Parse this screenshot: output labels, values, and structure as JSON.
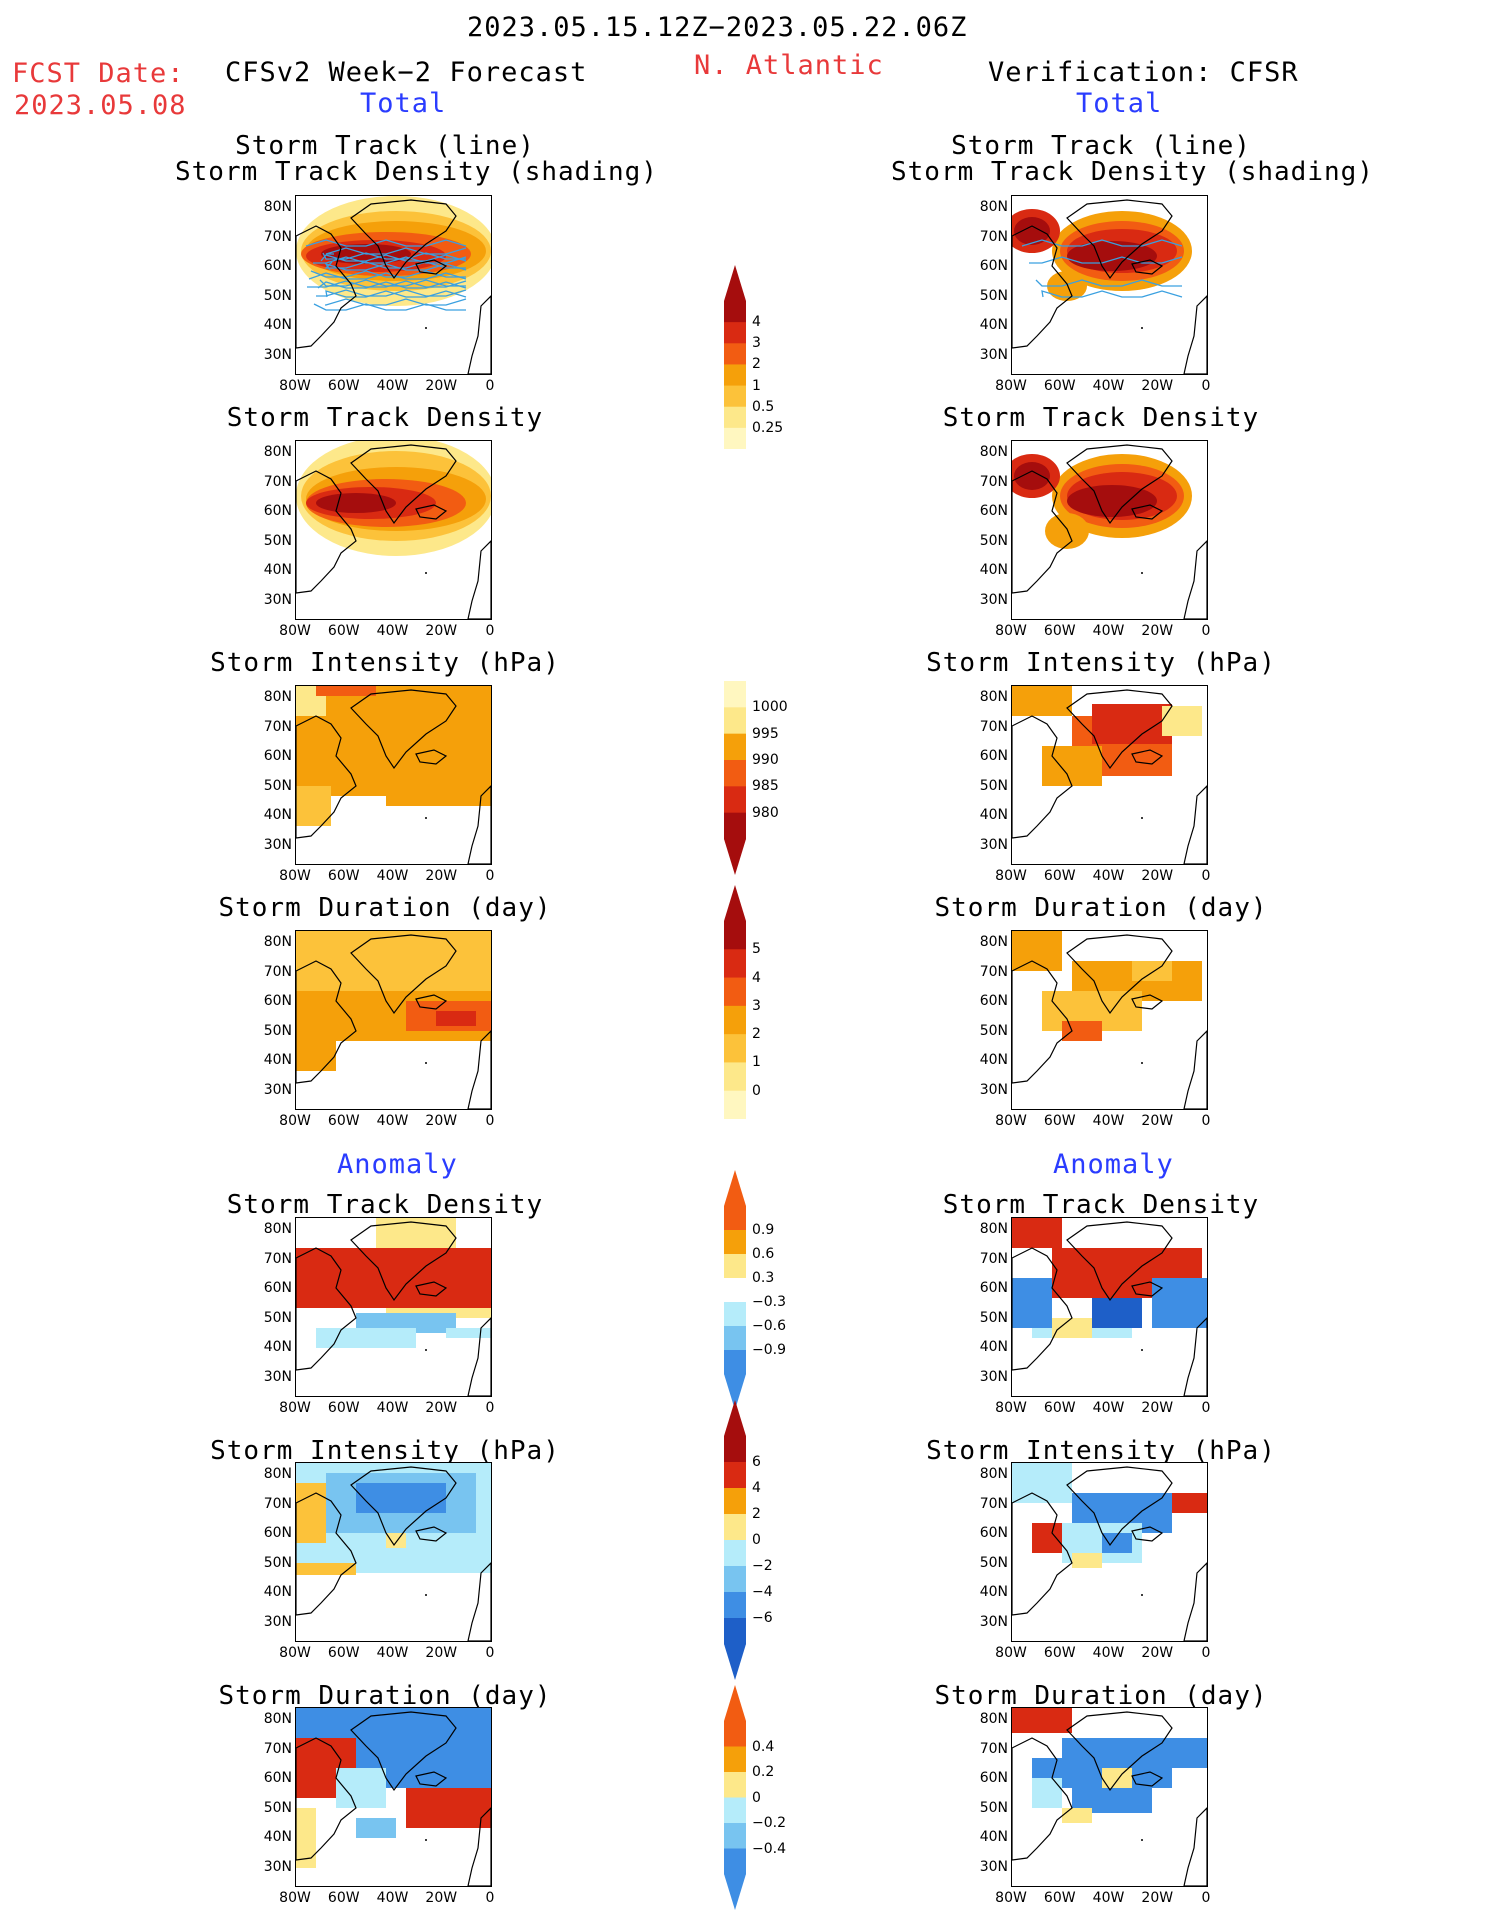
{
  "header": {
    "date_range": "2023.05.15.12Z−2023.05.22.06Z",
    "fcst_label": "FCST Date:",
    "fcst_date": "2023.05.08",
    "left_title": "CFSv2 Week−2 Forecast",
    "region": "N. Atlantic",
    "right_title": "Verification: CFSR"
  },
  "sections": {
    "total": "Total",
    "anomaly": "Anomaly"
  },
  "panel_titles": {
    "track_line": "Storm Track (line)",
    "track_shading": "Storm Track Density (shading)",
    "density": "Storm Track Density",
    "intensity": "Storm Intensity (hPa)",
    "duration": "Storm Duration (day)"
  },
  "axes": {
    "lat_ticks": [
      "80N",
      "70N",
      "60N",
      "50N",
      "40N",
      "30N"
    ],
    "lon_ticks": [
      "80W",
      "60W",
      "40W",
      "20W",
      "0"
    ]
  },
  "colorbars": {
    "density_total": [
      "4",
      "3",
      "2",
      "1",
      "0.5",
      "0.25"
    ],
    "intensity_total": [
      "1000",
      "995",
      "990",
      "985",
      "980"
    ],
    "duration_total": [
      "5",
      "4",
      "3",
      "2",
      "1",
      "0"
    ],
    "density_anom": [
      "0.9",
      "0.6",
      "0.3",
      "−0.3",
      "−0.6",
      "−0.9"
    ],
    "intensity_anom": [
      "6",
      "4",
      "2",
      "0",
      "−2",
      "−4",
      "−6"
    ],
    "duration_anom": [
      "0.4",
      "0.2",
      "0",
      "−0.2",
      "−0.4"
    ]
  },
  "colors": {
    "dark_red": "#a50d0d",
    "red": "#d92a12",
    "orange_red": "#f25c12",
    "orange": "#f5a00a",
    "light_orange": "#fcc23a",
    "yellow": "#fde88a",
    "pale_yellow": "#fff7c0",
    "light_blue": "#b5ecfa",
    "mid_blue": "#78c4f0",
    "blue": "#3e8ee4",
    "dark_blue": "#1e5fc8",
    "track_line": "#3aa0e0"
  },
  "chart_data": [
    {
      "type": "heatmap",
      "title": "Storm Track (line) / Storm Track Density (shading)",
      "column": "CFSv2 Week−2 Forecast",
      "section": "Total"
    },
    {
      "type": "heatmap",
      "title": "Storm Track Density",
      "column": "CFSv2 Week−2 Forecast",
      "section": "Total"
    },
    {
      "type": "heatmap",
      "title": "Storm Intensity (hPa)",
      "column": "CFSv2 Week−2 Forecast",
      "section": "Total"
    },
    {
      "type": "heatmap",
      "title": "Storm Duration (day)",
      "column": "CFSv2 Week−2 Forecast",
      "section": "Total"
    },
    {
      "type": "heatmap",
      "title": "Storm Track Density",
      "column": "CFSv2 Week−2 Forecast",
      "section": "Anomaly"
    },
    {
      "type": "heatmap",
      "title": "Storm Intensity (hPa)",
      "column": "CFSv2 Week−2 Forecast",
      "section": "Anomaly"
    },
    {
      "type": "heatmap",
      "title": "Storm Duration (day)",
      "column": "CFSv2 Week−2 Forecast",
      "section": "Anomaly"
    },
    {
      "type": "heatmap",
      "title": "Storm Track (line) / Storm Track Density (shading)",
      "column": "Verification: CFSR",
      "section": "Total"
    },
    {
      "type": "heatmap",
      "title": "Storm Track Density",
      "column": "Verification: CFSR",
      "section": "Total"
    },
    {
      "type": "heatmap",
      "title": "Storm Intensity (hPa)",
      "column": "Verification: CFSR",
      "section": "Total"
    },
    {
      "type": "heatmap",
      "title": "Storm Duration (day)",
      "column": "Verification: CFSR",
      "section": "Total"
    },
    {
      "type": "heatmap",
      "title": "Storm Track Density",
      "column": "Verification: CFSR",
      "section": "Anomaly"
    },
    {
      "type": "heatmap",
      "title": "Storm Intensity (hPa)",
      "column": "Verification: CFSR",
      "section": "Anomaly"
    },
    {
      "type": "heatmap",
      "title": "Storm Duration (day)",
      "column": "Verification: CFSR",
      "section": "Anomaly"
    }
  ]
}
